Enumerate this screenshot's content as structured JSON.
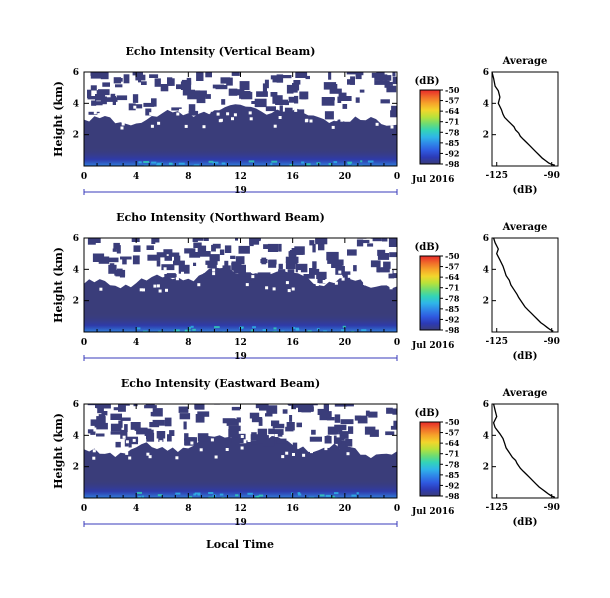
{
  "page": {
    "xlabel_bottom": "Local Time"
  },
  "colors": {
    "background_field": "#3a3d7a",
    "no_data": "#ffffff",
    "date_axis": "#3a3bbb"
  },
  "colorbar": {
    "unit_label": "(dB)",
    "tick_labels": [
      "-50",
      "-57",
      "-64",
      "-71",
      "-78",
      "-85",
      "-92",
      "-98"
    ],
    "range_db": [
      -99,
      -50
    ],
    "colors": [
      "#e8292a",
      "#f06a2a",
      "#f6a52a",
      "#f2d52c",
      "#b9e23a",
      "#6fdc71",
      "#33d4b8",
      "#2fb6e8",
      "#2f86e8",
      "#2f5ae0",
      "#2c3ab6",
      "#3a3d7a"
    ]
  },
  "chart_data": [
    {
      "type": "heatmap",
      "title": "Echo Intensity (Vertical Beam)",
      "ylabel": "Height (km)",
      "x_ticks": [
        "0",
        "4",
        "8",
        "12",
        "16",
        "20",
        "0"
      ],
      "xlim_hours": [
        0,
        24
      ],
      "y_ticks": [
        "6",
        "4",
        "2"
      ],
      "ylim_km": [
        0,
        6
      ],
      "date_axis": {
        "day_label": "19",
        "month_label": "Jul 2016"
      },
      "clear_air_top_km": 2.8,
      "top_gap_km": 6.0,
      "value_range_db": [
        -98,
        -50
      ]
    },
    {
      "type": "heatmap",
      "title": "Echo Intensity (Northward Beam)",
      "ylabel": "Height (km)",
      "x_ticks": [
        "0",
        "4",
        "8",
        "12",
        "16",
        "20",
        "0"
      ],
      "xlim_hours": [
        0,
        24
      ],
      "y_ticks": [
        "6",
        "4",
        "2"
      ],
      "ylim_km": [
        0,
        6
      ],
      "date_axis": {
        "day_label": "19",
        "month_label": "Jul 2016"
      },
      "clear_air_top_km": 3.0,
      "top_gap_km": 6.0,
      "value_range_db": [
        -98,
        -50
      ]
    },
    {
      "type": "heatmap",
      "title": "Echo Intensity (Eastward Beam)",
      "ylabel": "Height (km)",
      "x_ticks": [
        "0",
        "4",
        "8",
        "12",
        "16",
        "20",
        "0"
      ],
      "xlim_hours": [
        0,
        24
      ],
      "y_ticks": [
        "6",
        "4",
        "2"
      ],
      "ylim_km": [
        0,
        6
      ],
      "date_axis": {
        "day_label": "19",
        "month_label": "Jul 2016"
      },
      "clear_air_top_km": 2.9,
      "top_gap_km": 6.0,
      "value_range_db": [
        -98,
        -50
      ]
    },
    {
      "type": "line",
      "title": "Average",
      "xlabel": "(dB)",
      "x_ticks": [
        "-125",
        "-90"
      ],
      "xlim": [
        -128,
        -86
      ],
      "y_ticks": [
        "6",
        "4",
        "2"
      ],
      "ylim": [
        0,
        6
      ],
      "series": [
        {
          "x": [
            -128,
            -127,
            -126,
            -124,
            -123,
            -124,
            -122,
            -121,
            -120,
            -118,
            -116,
            -114,
            -113,
            -111,
            -110,
            -108,
            -106,
            -104,
            -102,
            -100,
            -98,
            -96,
            -94,
            -92,
            -90,
            -88
          ],
          "y": [
            6.0,
            5.6,
            5.1,
            4.8,
            4.4,
            4.0,
            3.6,
            3.3,
            3.1,
            2.9,
            2.7,
            2.5,
            2.3,
            2.1,
            1.9,
            1.7,
            1.5,
            1.3,
            1.1,
            0.9,
            0.7,
            0.5,
            0.35,
            0.2,
            0.1,
            0.05
          ]
        }
      ]
    },
    {
      "type": "line",
      "title": "Average",
      "xlabel": "(dB)",
      "x_ticks": [
        "-125",
        "-90"
      ],
      "xlim": [
        -128,
        -86
      ],
      "y_ticks": [
        "6",
        "4",
        "2"
      ],
      "ylim": [
        0,
        6
      ],
      "series": [
        {
          "x": [
            -127,
            -126,
            -124,
            -125,
            -123,
            -121,
            -120,
            -119,
            -117,
            -116,
            -114,
            -112,
            -111,
            -109,
            -107,
            -105,
            -103,
            -101,
            -99,
            -97,
            -95,
            -93,
            -91,
            -89
          ],
          "y": [
            6.0,
            5.7,
            5.3,
            5.0,
            4.6,
            4.2,
            3.9,
            3.6,
            3.3,
            3.0,
            2.7,
            2.4,
            2.2,
            1.9,
            1.6,
            1.4,
            1.2,
            1.0,
            0.8,
            0.6,
            0.45,
            0.3,
            0.15,
            0.05
          ]
        }
      ]
    },
    {
      "type": "line",
      "title": "Average",
      "xlabel": "(dB)",
      "x_ticks": [
        "-125",
        "-90"
      ],
      "xlim": [
        -128,
        -86
      ],
      "y_ticks": [
        "6",
        "4",
        "2"
      ],
      "ylim": [
        0,
        6
      ],
      "series": [
        {
          "x": [
            -127,
            -126,
            -125,
            -127,
            -126,
            -123,
            -121,
            -120,
            -119,
            -117,
            -115,
            -113,
            -112,
            -110,
            -108,
            -106,
            -104,
            -102,
            -100,
            -98,
            -96,
            -94,
            -92,
            -90,
            -88
          ],
          "y": [
            6.0,
            5.6,
            5.2,
            4.8,
            4.5,
            4.1,
            3.8,
            3.5,
            3.2,
            2.9,
            2.6,
            2.4,
            2.2,
            1.9,
            1.7,
            1.5,
            1.3,
            1.1,
            0.9,
            0.7,
            0.55,
            0.4,
            0.25,
            0.12,
            0.05
          ]
        }
      ]
    }
  ]
}
